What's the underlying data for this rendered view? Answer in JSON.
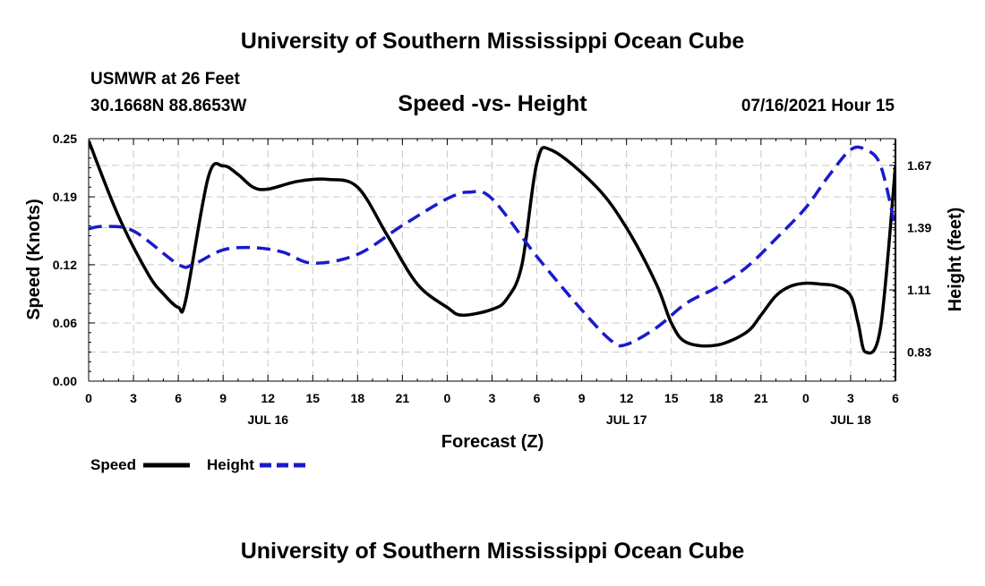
{
  "header": {
    "title": "University of Southern Mississippi Ocean Cube",
    "station": "USMWR at 26 Feet",
    "coords": "30.1668N  88.8653W",
    "chart_title": "Speed -vs- Height",
    "datetime": "07/16/2021 Hour 15"
  },
  "footer": {
    "title": "University of Southern Mississippi Ocean Cube"
  },
  "colors": {
    "speed": "#000000",
    "height": "#1a1acc",
    "grid": "#c8c8c8"
  },
  "chart_data": {
    "type": "line",
    "title": "Speed -vs- Height",
    "xlabel": "Forecast (Z)",
    "ylabel": "Speed (Knots)",
    "y2label": "Height (feet)",
    "xlim": [
      0,
      54
    ],
    "ylim": [
      0,
      0.25
    ],
    "y2lim": [
      0.7,
      1.79
    ],
    "x_tick_values": [
      0,
      3,
      6,
      9,
      12,
      15,
      18,
      21,
      24,
      27,
      30,
      33,
      36,
      39,
      42,
      45,
      48,
      51,
      54
    ],
    "x_tick_labels": [
      "0",
      "3",
      "6",
      "9",
      "12",
      "15",
      "18",
      "21",
      "0",
      "3",
      "6",
      "9",
      "12",
      "15",
      "18",
      "21",
      "0",
      "3",
      "6"
    ],
    "date_labels": [
      {
        "x": 12,
        "label": "JUL 16"
      },
      {
        "x": 36,
        "label": "JUL 17"
      },
      {
        "x": 51,
        "label": "JUL 18"
      }
    ],
    "y_ticks": [
      0,
      0.06,
      0.12,
      0.19,
      0.25
    ],
    "y_tick_labels": [
      "0.00",
      "0.06",
      "0.12",
      "0.19",
      "0.25"
    ],
    "y2_ticks": [
      0.83,
      1.11,
      1.39,
      1.67
    ],
    "y2_tick_labels": [
      "0.83",
      "1.11",
      "1.39",
      "1.67"
    ],
    "grid": true,
    "legend": [
      {
        "name": "Speed",
        "style": "solid"
      },
      {
        "name": "Height",
        "style": "dashed"
      }
    ],
    "series": [
      {
        "name": "Speed",
        "axis": "left",
        "x": [
          0,
          2,
          4,
          5,
          6,
          6.5,
          8,
          9,
          10,
          11,
          12,
          14,
          16,
          18,
          20,
          22,
          24,
          25,
          27,
          28,
          29,
          30,
          31,
          34,
          36,
          38,
          39,
          40,
          42,
          44,
          45,
          46,
          47,
          48,
          49,
          50,
          51,
          51.5,
          52,
          53,
          54
        ],
        "y": [
          0.248,
          0.17,
          0.11,
          0.09,
          0.076,
          0.084,
          0.21,
          0.222,
          0.213,
          0.2,
          0.198,
          0.206,
          0.208,
          0.2,
          0.15,
          0.1,
          0.076,
          0.068,
          0.074,
          0.085,
          0.12,
          0.225,
          0.238,
          0.2,
          0.158,
          0.1,
          0.06,
          0.04,
          0.037,
          0.05,
          0.068,
          0.088,
          0.098,
          0.101,
          0.1,
          0.098,
          0.088,
          0.06,
          0.03,
          0.055,
          0.222
        ]
      },
      {
        "name": "Height",
        "axis": "right",
        "x": [
          0,
          1,
          3,
          6,
          7,
          9,
          11,
          13,
          15,
          18,
          21,
          24,
          25.5,
          27,
          30,
          33,
          35,
          36,
          38,
          40,
          42,
          44,
          46,
          48,
          49.5,
          51,
          52,
          53,
          54
        ],
        "y": [
          1.385,
          1.395,
          1.375,
          1.225,
          1.225,
          1.29,
          1.3,
          1.28,
          1.23,
          1.27,
          1.4,
          1.52,
          1.55,
          1.52,
          1.26,
          1.02,
          0.88,
          0.865,
          0.94,
          1.05,
          1.12,
          1.21,
          1.34,
          1.48,
          1.62,
          1.74,
          1.74,
          1.67,
          1.39
        ]
      }
    ]
  }
}
